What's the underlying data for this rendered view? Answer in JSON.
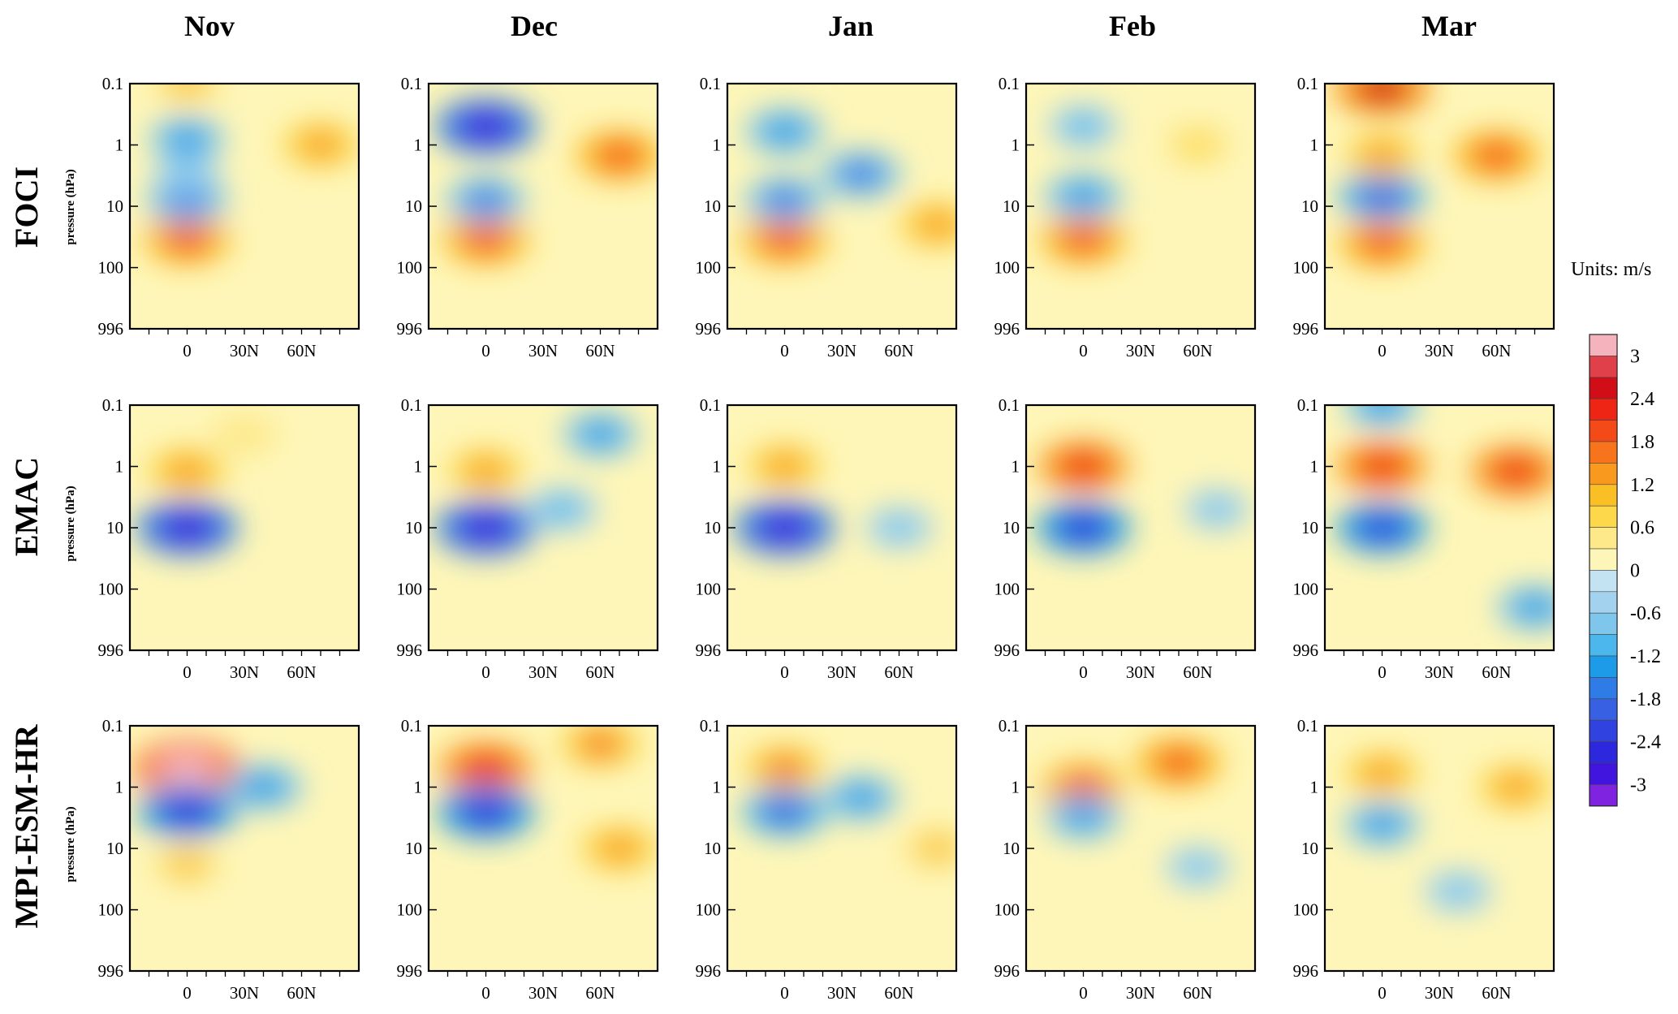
{
  "figure": {
    "column_headers": [
      "Nov",
      "Dec",
      "Jan",
      "Feb",
      "Mar"
    ],
    "row_labels": [
      "FOCI",
      "EMAC",
      "MPI-ESM-HR"
    ],
    "y_axis_label": "pressure (hPa)",
    "units_label": "Units: m/s"
  },
  "chart_data": {
    "type": "heatmap",
    "y_ticks": [
      "0.1",
      "1",
      "10",
      "100",
      "996"
    ],
    "y_scale": "log",
    "y_range": [
      996,
      0.1
    ],
    "x_ticks": [
      "0",
      "30N",
      "60N"
    ],
    "x_tick_values": [
      0,
      30,
      60
    ],
    "x_range": [
      -30,
      90
    ],
    "colorbar": {
      "tick_labels": [
        "3",
        "2.4",
        "1.8",
        "1.2",
        "0.6",
        "0",
        "-0.6",
        "-1.2",
        "-1.8",
        "-2.4",
        "-3"
      ],
      "range": [
        -3.3,
        3.3
      ],
      "step": 0.3,
      "colors_high_to_low": [
        "#f5b4bd",
        "#e0404a",
        "#d10e18",
        "#ee2415",
        "#f44a17",
        "#f7741c",
        "#f99a1f",
        "#fbbf26",
        "#fcd84a",
        "#fde98a",
        "#fef6b8",
        "#c4e3f2",
        "#a2d2ee",
        "#7ec6ec",
        "#4cb7ed",
        "#1e9be8",
        "#2f7ce6",
        "#3760e2",
        "#3043e0",
        "#2d27dd",
        "#4215df",
        "#7f23e0"
      ]
    },
    "significance_marker": "white dots",
    "panels": [
      {
        "model": "FOCI",
        "month": "Nov",
        "features": [
          {
            "lat": 0,
            "p": 35,
            "value": 2.0
          },
          {
            "lat": 0,
            "p": 8,
            "value": -1.6
          },
          {
            "lat": 0,
            "p": 3,
            "value": -0.6
          },
          {
            "lat": 0,
            "p": 0.8,
            "value": -1.2
          },
          {
            "lat": 0,
            "p": 0.1,
            "value": 1.0
          },
          {
            "lat": 70,
            "p": 1.0,
            "value": 1.4
          }
        ]
      },
      {
        "model": "FOCI",
        "month": "Dec",
        "features": [
          {
            "lat": 0,
            "p": 35,
            "value": 2.0
          },
          {
            "lat": 0,
            "p": 8,
            "value": -1.5
          },
          {
            "lat": 0,
            "p": 0.5,
            "value": -2.8
          },
          {
            "lat": 70,
            "p": 1.5,
            "value": 2.0
          }
        ]
      },
      {
        "model": "FOCI",
        "month": "Jan",
        "features": [
          {
            "lat": 0,
            "p": 35,
            "value": 2.0
          },
          {
            "lat": 0,
            "p": 8,
            "value": -1.5
          },
          {
            "lat": 0,
            "p": 0.6,
            "value": -1.4
          },
          {
            "lat": 40,
            "p": 3,
            "value": -1.6
          },
          {
            "lat": 80,
            "p": 20,
            "value": 1.4
          }
        ]
      },
      {
        "model": "FOCI",
        "month": "Feb",
        "features": [
          {
            "lat": 0,
            "p": 35,
            "value": 2.0
          },
          {
            "lat": 0,
            "p": 7,
            "value": -1.4
          },
          {
            "lat": 0,
            "p": 0.5,
            "value": -0.9
          },
          {
            "lat": 60,
            "p": 1,
            "value": 0.7
          }
        ]
      },
      {
        "model": "FOCI",
        "month": "Mar",
        "features": [
          {
            "lat": 0,
            "p": 40,
            "value": 2.0
          },
          {
            "lat": 0,
            "p": 7,
            "value": -2.0
          },
          {
            "lat": 0,
            "p": 1.5,
            "value": 1.2
          },
          {
            "lat": 0,
            "p": 0.12,
            "value": 2.6
          },
          {
            "lat": 60,
            "p": 1.5,
            "value": 2.0
          }
        ]
      },
      {
        "model": "EMAC",
        "month": "Nov",
        "features": [
          {
            "lat": 0,
            "p": 10,
            "value": -2.8
          },
          {
            "lat": 0,
            "p": 1.2,
            "value": 1.5
          },
          {
            "lat": 30,
            "p": 0.3,
            "value": 0.6
          }
        ]
      },
      {
        "model": "EMAC",
        "month": "Dec",
        "features": [
          {
            "lat": 0,
            "p": 10,
            "value": -2.8
          },
          {
            "lat": 0,
            "p": 1.2,
            "value": 1.2
          },
          {
            "lat": 60,
            "p": 0.3,
            "value": -1.2
          },
          {
            "lat": 40,
            "p": 5,
            "value": -1.0
          }
        ]
      },
      {
        "model": "EMAC",
        "month": "Jan",
        "features": [
          {
            "lat": 0,
            "p": 10,
            "value": -2.8
          },
          {
            "lat": 0,
            "p": 1.0,
            "value": 1.2
          },
          {
            "lat": 60,
            "p": 10,
            "value": -0.8
          }
        ]
      },
      {
        "model": "EMAC",
        "month": "Feb",
        "features": [
          {
            "lat": 0,
            "p": 10,
            "value": -2.4
          },
          {
            "lat": 0,
            "p": 1.0,
            "value": 2.2
          },
          {
            "lat": 70,
            "p": 5,
            "value": -0.6
          }
        ]
      },
      {
        "model": "EMAC",
        "month": "Mar",
        "features": [
          {
            "lat": 0,
            "p": 10,
            "value": -2.2
          },
          {
            "lat": 0,
            "p": 1.0,
            "value": 2.2
          },
          {
            "lat": 0,
            "p": 0.1,
            "value": -1.2
          },
          {
            "lat": 70,
            "p": 1.2,
            "value": 2.2
          },
          {
            "lat": 80,
            "p": 200,
            "value": -1.2
          }
        ]
      },
      {
        "model": "MPI-ESM-HR",
        "month": "Nov",
        "features": [
          {
            "lat": 0,
            "p": 0.5,
            "value": 3.2
          },
          {
            "lat": 0,
            "p": 2.5,
            "value": -2.6
          },
          {
            "lat": 0,
            "p": 18,
            "value": 1.0
          },
          {
            "lat": 40,
            "p": 1,
            "value": -1.4
          }
        ]
      },
      {
        "model": "MPI-ESM-HR",
        "month": "Dec",
        "features": [
          {
            "lat": 0,
            "p": 0.5,
            "value": 2.4
          },
          {
            "lat": 0,
            "p": 2.5,
            "value": -2.6
          },
          {
            "lat": 60,
            "p": 0.2,
            "value": 1.6
          },
          {
            "lat": 70,
            "p": 10,
            "value": 1.4
          }
        ]
      },
      {
        "model": "MPI-ESM-HR",
        "month": "Jan",
        "features": [
          {
            "lat": 0,
            "p": 0.5,
            "value": 1.6
          },
          {
            "lat": 0,
            "p": 2.5,
            "value": -1.8
          },
          {
            "lat": 40,
            "p": 1.5,
            "value": -1.2
          },
          {
            "lat": 80,
            "p": 10,
            "value": 1.0
          }
        ]
      },
      {
        "model": "MPI-ESM-HR",
        "month": "Feb",
        "features": [
          {
            "lat": 0,
            "p": 1,
            "value": 1.8
          },
          {
            "lat": 0,
            "p": 3,
            "value": -1.2
          },
          {
            "lat": 50,
            "p": 0.4,
            "value": 2.0
          },
          {
            "lat": 60,
            "p": 20,
            "value": -0.6
          }
        ]
      },
      {
        "model": "MPI-ESM-HR",
        "month": "Mar",
        "features": [
          {
            "lat": 0,
            "p": 0.6,
            "value": 1.2
          },
          {
            "lat": 0,
            "p": 4,
            "value": -1.2
          },
          {
            "lat": 70,
            "p": 1,
            "value": 1.2
          },
          {
            "lat": 40,
            "p": 50,
            "value": -0.8
          }
        ]
      }
    ]
  }
}
